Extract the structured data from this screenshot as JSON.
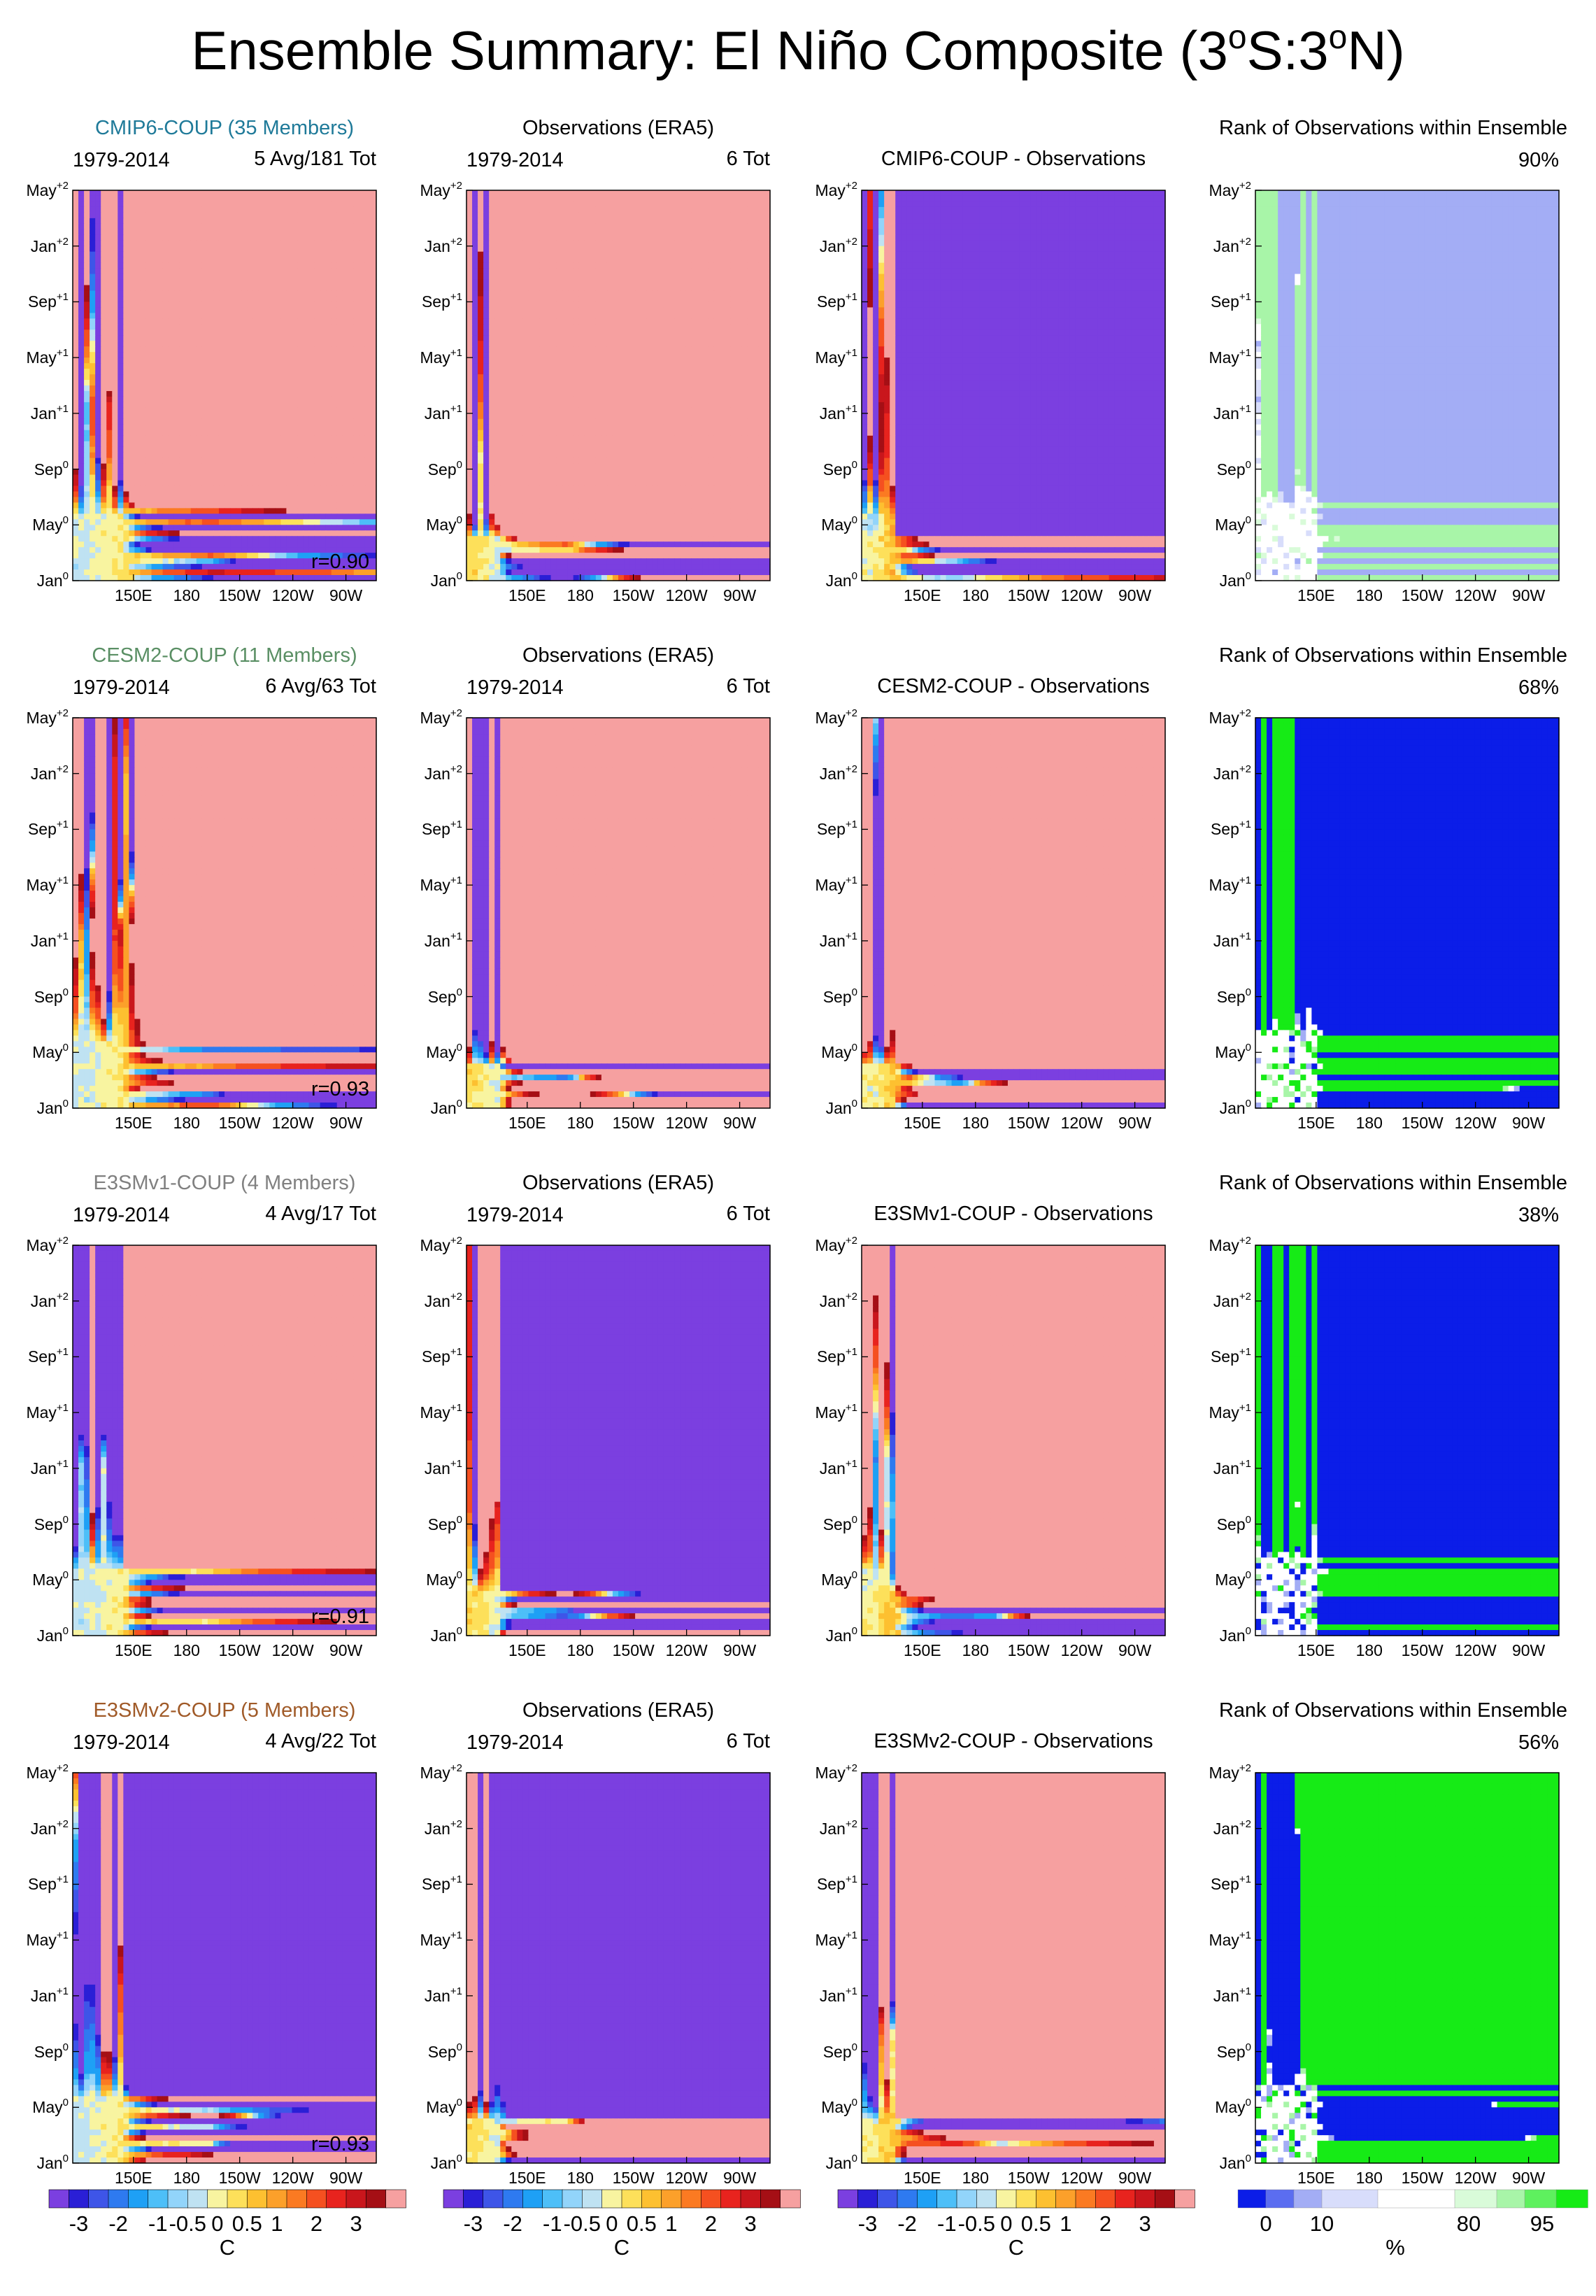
{
  "title": "Ensemble Summary: El Niño Composite (3°S:3°N)",
  "title_parts": {
    "a": "Ensemble Summary: El Niño Composite (3",
    "b": "o",
    "c": "S:3",
    "d": "o",
    "e": "N)"
  },
  "colors": {
    "sst_levels": [
      "#7b3fe0",
      "#2a1fd6",
      "#3e55e8",
      "#2e7af0",
      "#1ea0f5",
      "#4dbff8",
      "#92d4fa",
      "#bfe2f2",
      "#f8f4a0",
      "#fde05a",
      "#fdc030",
      "#fca02a",
      "#fb7a22",
      "#f55020",
      "#e8231e",
      "#c9161c",
      "#a50f15",
      "#f6a0a0"
    ],
    "rank_levels": [
      "#0b1de8",
      "#5b6df0",
      "#a3adf5",
      "#d8ddfb",
      "#ffffff",
      "#d9fbd9",
      "#a8f5a8",
      "#5ef05e",
      "#16eb16"
    ],
    "cmip6_title": "#1f7a99",
    "cesm2_title": "#5a8f64",
    "e3smv1_title": "#808080",
    "e3smv2_title": "#a05a28"
  },
  "rows": [
    {
      "model_title": "CMIP6-COUP (35 Members)",
      "model_period": "1979-2014",
      "model_count": "5 Avg/181 Tot",
      "correlation": "r=0.90",
      "obs_title": "Observations (ERA5)",
      "obs_period": "1979-2014",
      "obs_count": "6 Tot",
      "diff_title": "CMIP6-COUP - Observations",
      "rank_title": "Rank of Observations within Ensemble",
      "rank_pct": "90%"
    },
    {
      "model_title": "CESM2-COUP (11 Members)",
      "model_period": "1979-2014",
      "model_count": "6 Avg/63 Tot",
      "correlation": "r=0.93",
      "obs_title": "Observations (ERA5)",
      "obs_period": "1979-2014",
      "obs_count": "6 Tot",
      "diff_title": "CESM2-COUP - Observations",
      "rank_title": "Rank of Observations within Ensemble",
      "rank_pct": "68%"
    },
    {
      "model_title": "E3SMv1-COUP (4 Members)",
      "model_period": "1979-2014",
      "model_count": "4 Avg/17 Tot",
      "correlation": "r=0.91",
      "obs_title": "Observations (ERA5)",
      "obs_period": "1979-2014",
      "obs_count": "6 Tot",
      "diff_title": "E3SMv1-COUP - Observations",
      "rank_title": "Rank of Observations within Ensemble",
      "rank_pct": "38%"
    },
    {
      "model_title": "E3SMv2-COUP (5 Members)",
      "model_period": "1979-2014",
      "model_count": "4 Avg/22 Tot",
      "correlation": "r=0.93",
      "obs_title": "Observations (ERA5)",
      "obs_period": "1979-2014",
      "obs_count": "6 Tot",
      "diff_title": "E3SMv2-COUP - Observations",
      "rank_title": "Rank of Observations within Ensemble",
      "rank_pct": "56%"
    }
  ],
  "y_ticks": [
    {
      "base": "Jan",
      "sup": "0"
    },
    {
      "base": "May",
      "sup": "0"
    },
    {
      "base": "Sep",
      "sup": "0"
    },
    {
      "base": "Jan",
      "sup": "+1"
    },
    {
      "base": "May",
      "sup": "+1"
    },
    {
      "base": "Sep",
      "sup": "+1"
    },
    {
      "base": "Jan",
      "sup": "+2"
    },
    {
      "base": "May",
      "sup": "+2"
    }
  ],
  "x_ticks": [
    "150E",
    "180",
    "150W",
    "120W",
    "90W"
  ],
  "colorbars": {
    "sst_labels": [
      "-3",
      "-2",
      "-1",
      "-0.5",
      "0",
      "0.5",
      "1",
      "2",
      "3"
    ],
    "sst_unit": "C",
    "rank_labels": [
      "0",
      "10",
      "80",
      "95"
    ],
    "rank_unit": "%"
  },
  "chart_data": {
    "type": "heatmap",
    "title": "Ensemble Summary: El Niño Composite (3°S:3°N)",
    "description_axes": {
      "x": [
        "150E",
        "180",
        "150W",
        "120W",
        "90W"
      ],
      "y": [
        "Jan0",
        "May0",
        "Sep0",
        "Jan+1",
        "May+1",
        "Sep+1",
        "Jan+2",
        "May+2"
      ]
    },
    "sst_contour_levels": [
      -3,
      -2.5,
      -2,
      -1.5,
      -1,
      -0.75,
      -0.5,
      -0.25,
      0,
      0.25,
      0.5,
      0.75,
      1,
      1.5,
      2,
      2.5,
      3
    ],
    "rank_levels_percent": [
      0,
      5,
      10,
      20,
      80,
      90,
      95,
      100
    ],
    "panels_per_row": [
      "model composite",
      "observations (ERA5)",
      "model - observations",
      "rank of observations within ensemble"
    ],
    "ensembles": [
      {
        "name": "CMIP6-COUP",
        "members": 35,
        "composite_avg": 5,
        "composite_total": 181,
        "pattern_correlation": 0.9,
        "rank_fraction": 0.9,
        "obs_events": 6
      },
      {
        "name": "CESM2-COUP",
        "members": 11,
        "composite_avg": 6,
        "composite_total": 63,
        "pattern_correlation": 0.93,
        "rank_fraction": 0.68,
        "obs_events": 6
      },
      {
        "name": "E3SMv1-COUP",
        "members": 4,
        "composite_avg": 4,
        "composite_total": 17,
        "pattern_correlation": 0.91,
        "rank_fraction": 0.38,
        "obs_events": 6
      },
      {
        "name": "E3SMv2-COUP",
        "members": 5,
        "composite_avg": 4,
        "composite_total": 22,
        "pattern_correlation": 0.93,
        "rank_fraction": 0.56,
        "obs_events": 6
      }
    ]
  }
}
